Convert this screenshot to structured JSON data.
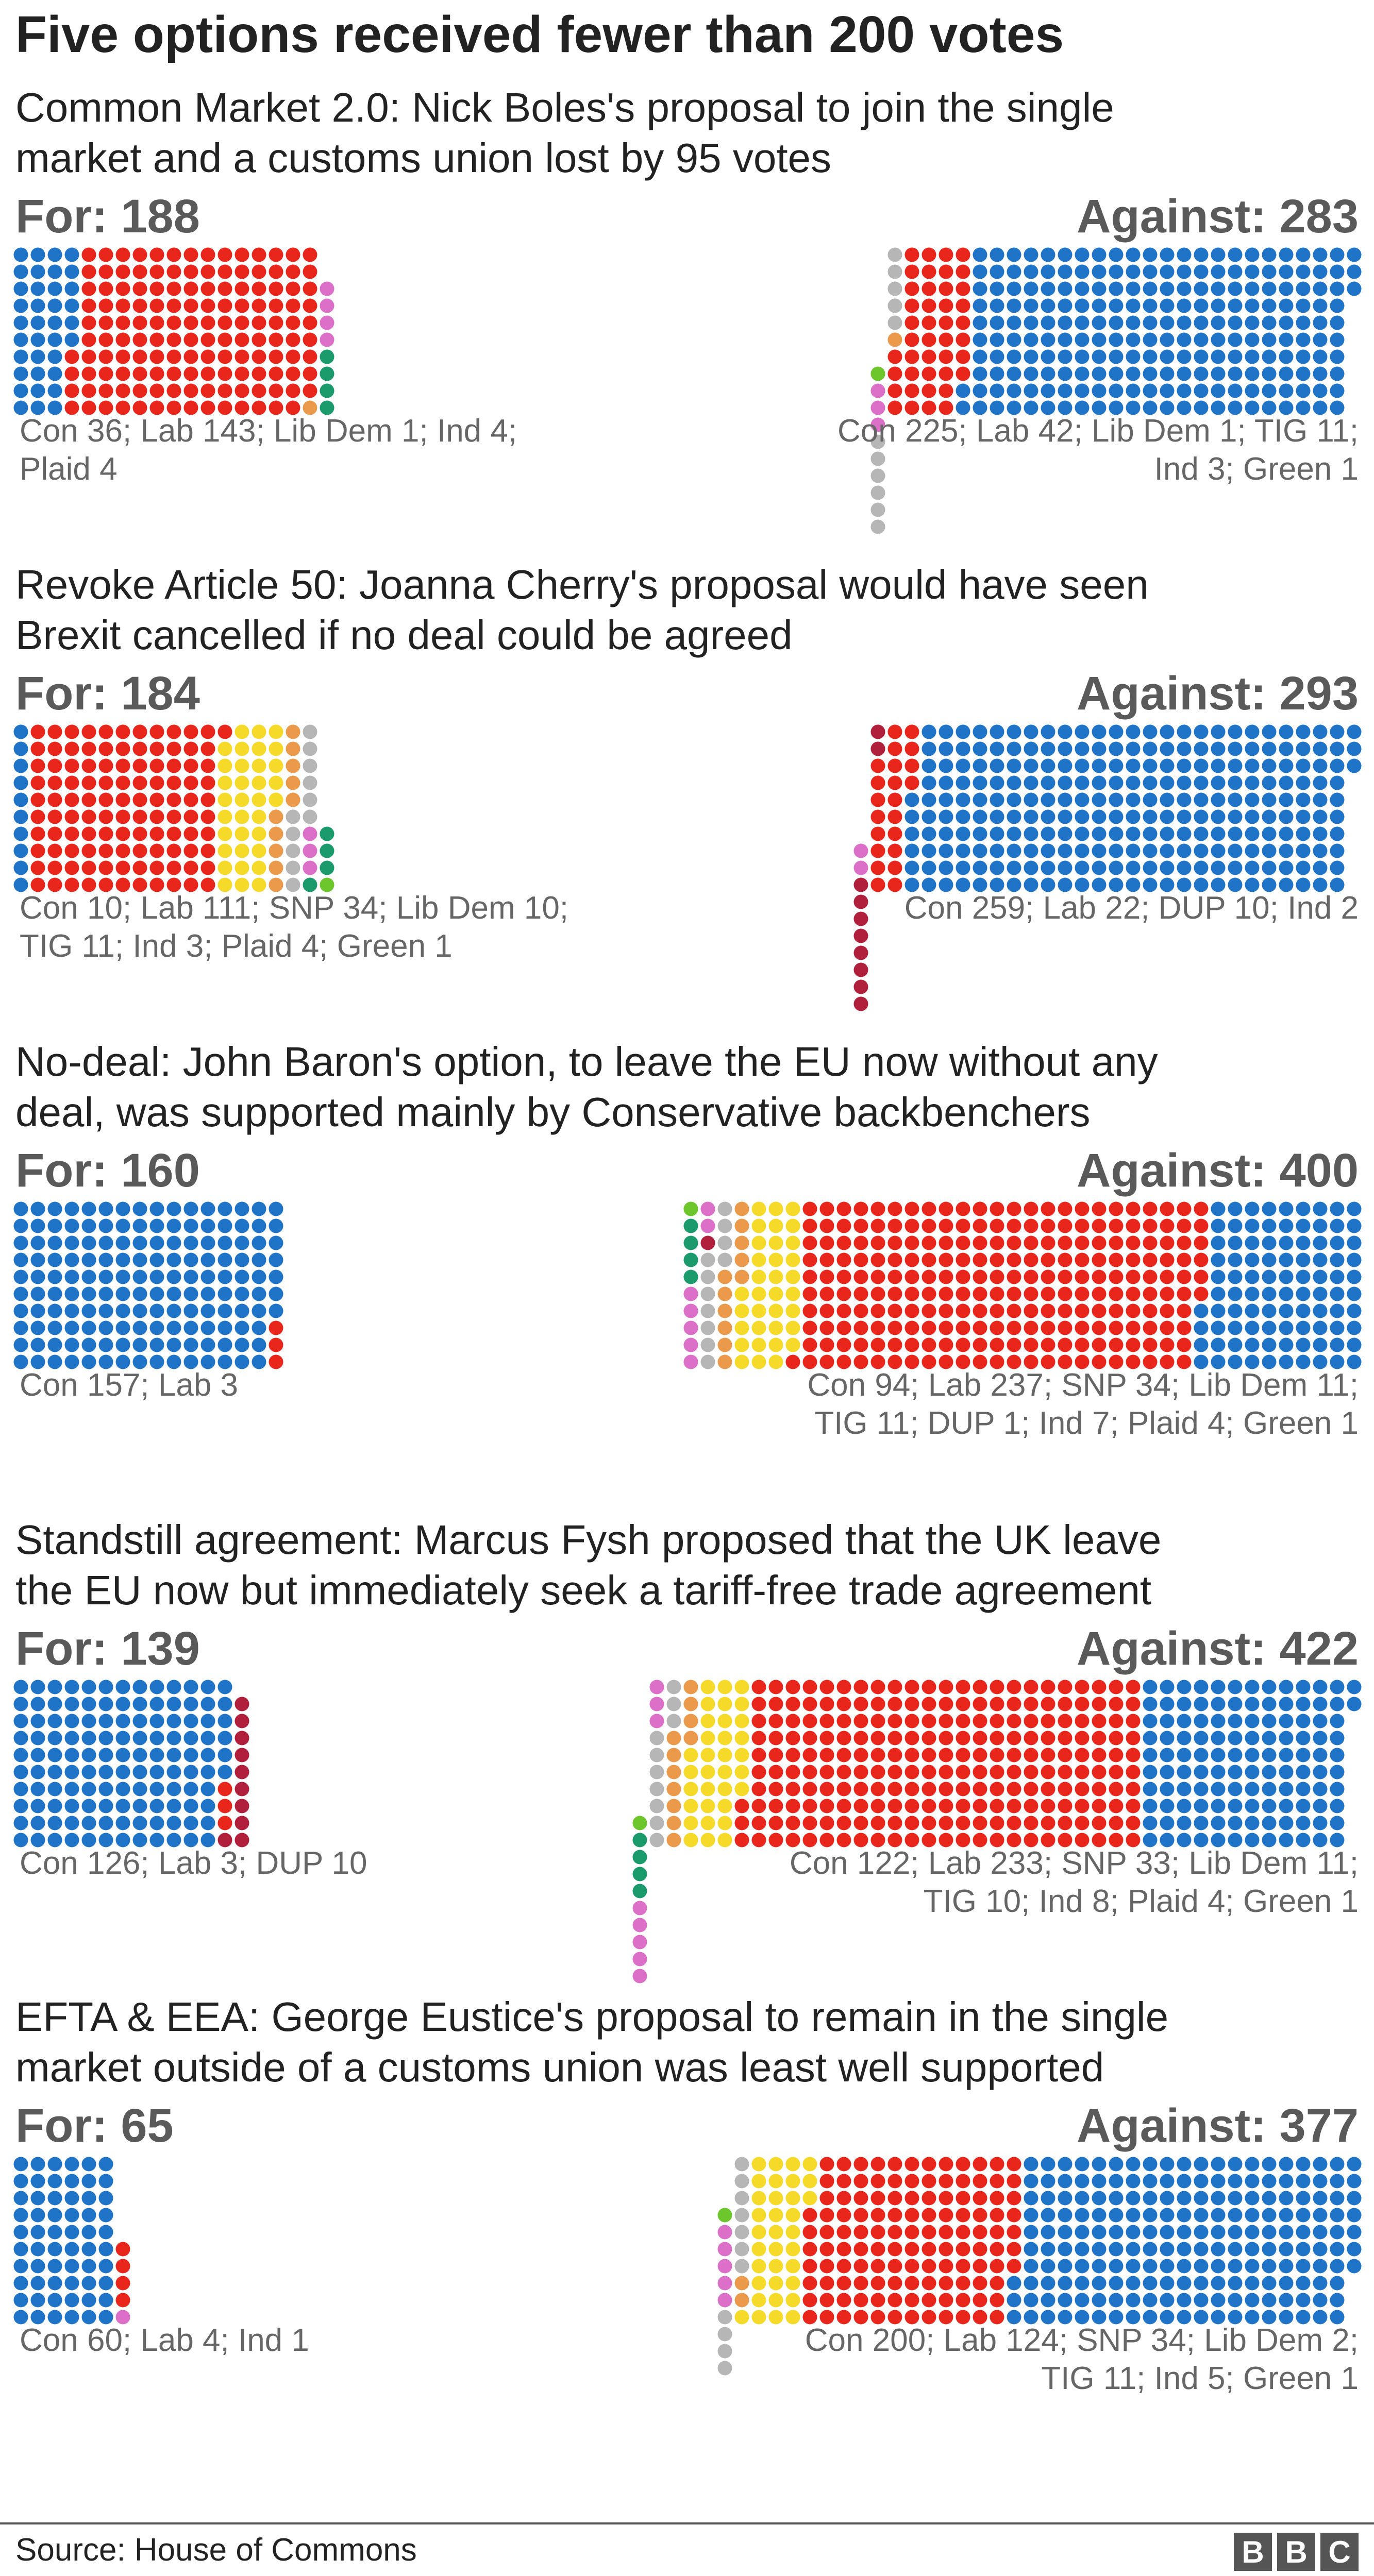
{
  "title": "Five options received fewer than 200 votes",
  "source": "Source: House of Commons",
  "logo": {
    "letters": [
      "B",
      "B",
      "C"
    ]
  },
  "party_colors": {
    "Con": "#1f74c8",
    "Lab": "#e8261c",
    "SNP": "#f6da2a",
    "Lib Dem": "#eb9a4c",
    "TIG": "#b6b6b6",
    "DUP": "#b0203d",
    "Ind": "#dc6fc8",
    "Plaid": "#1b9a6c",
    "Green": "#6cc62c"
  },
  "chart_data": [
    {
      "type": "waffle",
      "heading_lines": [
        "Common Market 2.0: Nick Boles's proposal to join the single",
        "market and a customs union lost by 95 votes"
      ],
      "for_label": "For: 188",
      "against_label": "Against: 283",
      "for_breakdown_lines": [
        "Con 36; Lab 143; Lib Dem 1; Ind 4;",
        "Plaid 4"
      ],
      "against_breakdown_lines": [
        "Con 225; Lab 42; Lib Dem 1; TIG 11;",
        "Ind 3; Green 1"
      ],
      "for": [
        [
          "Con",
          36
        ],
        [
          "Lab",
          143
        ],
        [
          "Lib Dem",
          1
        ],
        [
          "Ind",
          4
        ],
        [
          "Plaid",
          4
        ]
      ],
      "against": [
        [
          "Con",
          225
        ],
        [
          "Lab",
          42
        ],
        [
          "Lib Dem",
          1
        ],
        [
          "TIG",
          11
        ],
        [
          "Ind",
          3
        ],
        [
          "Green",
          1
        ]
      ]
    },
    {
      "type": "waffle",
      "heading_lines": [
        "Revoke Article 50: Joanna Cherry's proposal would have seen",
        "Brexit cancelled if no deal could be agreed"
      ],
      "for_label": "For: 184",
      "against_label": "Against: 293",
      "for_breakdown_lines": [
        "Con 10; Lab 111; SNP 34; Lib Dem 10;",
        "TIG 11; Ind 3; Plaid 4; Green 1"
      ],
      "against_breakdown_lines": [
        "Con 259; Lab 22; DUP 10; Ind 2"
      ],
      "for": [
        [
          "Con",
          10
        ],
        [
          "Lab",
          111
        ],
        [
          "SNP",
          34
        ],
        [
          "Lib Dem",
          10
        ],
        [
          "TIG",
          11
        ],
        [
          "Ind",
          3
        ],
        [
          "Plaid",
          4
        ],
        [
          "Green",
          1
        ]
      ],
      "against": [
        [
          "Con",
          259
        ],
        [
          "Lab",
          22
        ],
        [
          "DUP",
          10
        ],
        [
          "Ind",
          2
        ]
      ]
    },
    {
      "type": "waffle",
      "heading_lines": [
        "No-deal: John Baron's option, to leave the EU now without any",
        "deal, was supported mainly by Conservative backbenchers"
      ],
      "for_label": "For: 160",
      "against_label": "Against: 400",
      "for_breakdown_lines": [
        "Con 157; Lab 3"
      ],
      "against_breakdown_lines": [
        "Con 94; Lab 237; SNP 34; Lib Dem 11;",
        "TIG 11; DUP 1; Ind 7; Plaid 4; Green 1"
      ],
      "for": [
        [
          "Con",
          157
        ],
        [
          "Lab",
          3
        ]
      ],
      "against": [
        [
          "Con",
          94
        ],
        [
          "Lab",
          237
        ],
        [
          "SNP",
          34
        ],
        [
          "Lib Dem",
          11
        ],
        [
          "TIG",
          11
        ],
        [
          "DUP",
          1
        ],
        [
          "Ind",
          7
        ],
        [
          "Plaid",
          4
        ],
        [
          "Green",
          1
        ]
      ]
    },
    {
      "type": "waffle",
      "heading_lines": [
        "Standstill agreement: Marcus Fysh proposed that the UK leave",
        "the EU now but immediately seek a tariff-free trade agreement"
      ],
      "for_label": "For: 139",
      "against_label": "Against: 422",
      "for_breakdown_lines": [
        "Con 126; Lab 3; DUP 10"
      ],
      "against_breakdown_lines": [
        "Con 122; Lab 233; SNP 33; Lib Dem 11;",
        "TIG 10; Ind 8; Plaid 4; Green 1"
      ],
      "for": [
        [
          "Con",
          126
        ],
        [
          "Lab",
          3
        ],
        [
          "DUP",
          10
        ]
      ],
      "against": [
        [
          "Con",
          122
        ],
        [
          "Lab",
          233
        ],
        [
          "SNP",
          33
        ],
        [
          "Lib Dem",
          11
        ],
        [
          "TIG",
          10
        ],
        [
          "Ind",
          8
        ],
        [
          "Plaid",
          4
        ],
        [
          "Green",
          1
        ]
      ]
    },
    {
      "type": "waffle",
      "heading_lines": [
        "EFTA & EEA: George Eustice's proposal to remain in the single",
        "market outside of a customs union was least well supported"
      ],
      "for_label": "For: 65",
      "against_label": "Against: 377",
      "for_breakdown_lines": [
        "Con 60; Lab 4; Ind 1"
      ],
      "against_breakdown_lines": [
        "Con 200; Lab 124; SNP 34; Lib Dem 2;",
        "TIG 11; Ind 5; Green 1"
      ],
      "for": [
        [
          "Con",
          60
        ],
        [
          "Lab",
          4
        ],
        [
          "Ind",
          1
        ]
      ],
      "against": [
        [
          "Con",
          200
        ],
        [
          "Lab",
          124
        ],
        [
          "SNP",
          34
        ],
        [
          "Lib Dem",
          2
        ],
        [
          "TIG",
          11
        ],
        [
          "Ind",
          5
        ],
        [
          "Green",
          1
        ]
      ]
    }
  ]
}
